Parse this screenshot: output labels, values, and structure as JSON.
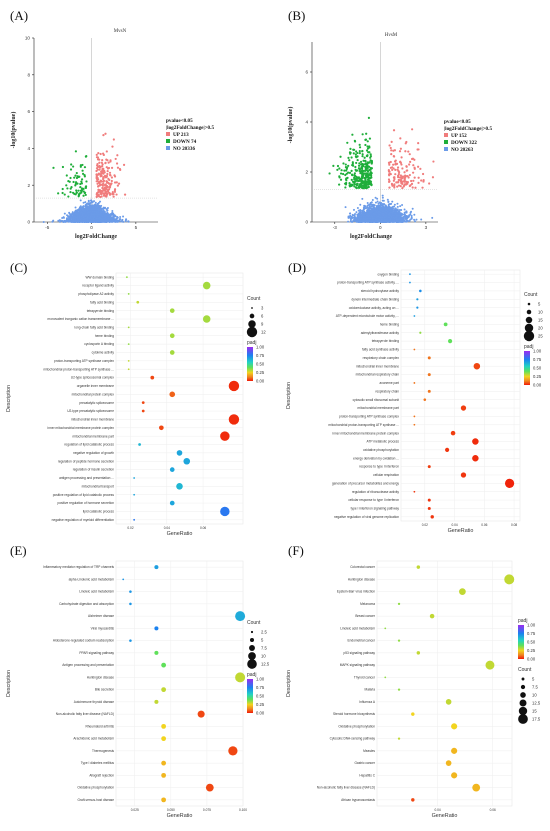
{
  "panels": {
    "A": "(A)",
    "B": "(B)",
    "C": "(C)",
    "D": "(D)",
    "E": "(E)",
    "F": "(F)"
  },
  "chart_data": [
    {
      "id": "A",
      "type": "scatter",
      "title": "MvsN",
      "xlabel": "log2FoldChange",
      "ylabel": "-log10(pvalue)",
      "xlim": [
        -6.5,
        7.5
      ],
      "ylim": [
        0,
        10
      ],
      "xticks": [
        -5,
        0,
        5
      ],
      "yticks": [
        0,
        2,
        4,
        6,
        8,
        10
      ],
      "legend_header": [
        "pvalue<0.05",
        "|log2FoldChange|>0.5"
      ],
      "legend": [
        {
          "label": "UP 213",
          "color": "#f07c7c"
        },
        {
          "label": "DOWN 74",
          "color": "#1fae3a"
        },
        {
          "label": "NO 20336",
          "color": "#6b9be8"
        }
      ],
      "up_count": 213,
      "down_count": 74,
      "no_count": 20336
    },
    {
      "id": "B",
      "type": "scatter",
      "title": "HvsM",
      "xlabel": "log2FoldChange",
      "ylabel": "-log10(pvalue)",
      "xlim": [
        -4.5,
        3.8
      ],
      "ylim": [
        0,
        7.2
      ],
      "xticks": [
        -3,
        0,
        3
      ],
      "yticks": [
        0,
        2,
        4,
        6
      ],
      "legend_header": [
        "pvalue<0.05",
        "|log2FoldChange|>0.5"
      ],
      "legend": [
        {
          "label": "UP 152",
          "color": "#f07c7c"
        },
        {
          "label": "DOWN 322",
          "color": "#1fae3a"
        },
        {
          "label": "NO 20263",
          "color": "#6b9be8"
        }
      ],
      "up_count": 152,
      "down_count": 322,
      "no_count": 20263
    },
    {
      "id": "C",
      "type": "scatter",
      "xlabel": "GeneRatio",
      "ylabel": "Description",
      "xlim": [
        0.012,
        0.082
      ],
      "xticks": [
        0.02,
        0.04,
        0.06
      ],
      "legend_size_title": "Count",
      "size_legend": [
        3,
        6,
        9,
        12
      ],
      "size_range": [
        3,
        12
      ],
      "legend_color_title": "padj",
      "color_ticks": [
        "1.00",
        "0.75",
        "0.50",
        "0.25",
        "0.00"
      ],
      "terms": [
        {
          "label": "WW domain binding",
          "x": 0.018,
          "count": 3,
          "padj": 0.35
        },
        {
          "label": "receptor ligand activity",
          "x": 0.062,
          "count": 9,
          "padj": 0.33
        },
        {
          "label": "phospholipase A2 activity",
          "x": 0.019,
          "count": 3,
          "padj": 0.35
        },
        {
          "label": "fatty acid binding",
          "x": 0.024,
          "count": 4,
          "padj": 0.3
        },
        {
          "label": "tetrapyrrole binding",
          "x": 0.043,
          "count": 6,
          "padj": 0.33
        },
        {
          "label": "monovalent inorganic cation transmembrane ...",
          "x": 0.062,
          "count": 9,
          "padj": 0.33
        },
        {
          "label": "long-chain fatty acid binding",
          "x": 0.019,
          "count": 3,
          "padj": 0.33
        },
        {
          "label": "heme binding",
          "x": 0.043,
          "count": 6,
          "padj": 0.33
        },
        {
          "label": "cyclosporin A binding",
          "x": 0.019,
          "count": 3,
          "padj": 0.35
        },
        {
          "label": "cytokine activity",
          "x": 0.043,
          "count": 6,
          "padj": 0.33
        },
        {
          "label": "proton-transporting ATP synthase complex",
          "x": 0.019,
          "count": 3,
          "padj": 0.3
        },
        {
          "label": "mitochondrial proton-transporting ATP synthase ...",
          "x": 0.019,
          "count": 3,
          "padj": 0.3
        },
        {
          "label": "U2-type spliceosomal complex",
          "x": 0.032,
          "count": 5,
          "padj": 0.05
        },
        {
          "label": "organelle inner membrane",
          "x": 0.077,
          "count": 12,
          "padj": 0.02
        },
        {
          "label": "mitochondrial protein complex",
          "x": 0.043,
          "count": 7,
          "padj": 0.08
        },
        {
          "label": "precatalytic spliceosome",
          "x": 0.027,
          "count": 4,
          "padj": 0.05
        },
        {
          "label": "U2-type precatalytic spliceosome",
          "x": 0.027,
          "count": 4,
          "padj": 0.05
        },
        {
          "label": "mitochondrial inner membrane",
          "x": 0.077,
          "count": 12,
          "padj": 0.02
        },
        {
          "label": "inner mitochondrial membrane protein complex",
          "x": 0.037,
          "count": 6,
          "padj": 0.05
        },
        {
          "label": "mitochondrial membrane part",
          "x": 0.072,
          "count": 11,
          "padj": 0.02
        },
        {
          "label": "regulation of lipid catabolic process",
          "x": 0.025,
          "count": 4,
          "padj": 0.62
        },
        {
          "label": "negative regulation of growth",
          "x": 0.047,
          "count": 7,
          "padj": 0.66
        },
        {
          "label": "regulation of peptide hormone secretion",
          "x": 0.051,
          "count": 8,
          "padj": 0.66
        },
        {
          "label": "regulation of insulin secretion",
          "x": 0.043,
          "count": 6,
          "padj": 0.66
        },
        {
          "label": "antigen processing and presentation ...",
          "x": 0.022,
          "count": 3,
          "padj": 0.66
        },
        {
          "label": "mitochondrial transport",
          "x": 0.047,
          "count": 8,
          "padj": 0.62
        },
        {
          "label": "positive regulation of lipid catabolic process",
          "x": 0.022,
          "count": 3,
          "padj": 0.66
        },
        {
          "label": "positive regulation of hormone secretion",
          "x": 0.043,
          "count": 6,
          "padj": 0.66
        },
        {
          "label": "lipid catabolic process",
          "x": 0.072,
          "count": 11,
          "padj": 0.78
        },
        {
          "label": "negative regulation of myeloid differentiation",
          "x": 0.022,
          "count": 3,
          "padj": 0.78
        }
      ]
    },
    {
      "id": "D",
      "type": "scatter",
      "xlabel": "GeneRatio",
      "ylabel": "Description",
      "xlim": [
        0.004,
        0.084
      ],
      "xticks": [
        0.02,
        0.04,
        0.06,
        0.08
      ],
      "legend_size_title": "Count",
      "size_legend": [
        5,
        10,
        15,
        20,
        25
      ],
      "size_range": [
        3,
        25
      ],
      "legend_color_title": "padj",
      "color_ticks": [
        "1.00",
        "0.75",
        "0.50",
        "0.25",
        "0.00"
      ],
      "terms": [
        {
          "label": "oxygen binding",
          "x": 0.01,
          "count": 3,
          "padj": 0.7
        },
        {
          "label": "proton-transporting ATP synthase activity, ...",
          "x": 0.01,
          "count": 3,
          "padj": 0.7
        },
        {
          "label": "steroid hydroxylase activity",
          "x": 0.017,
          "count": 5,
          "padj": 0.72
        },
        {
          "label": "dynein intermediate chain binding",
          "x": 0.015,
          "count": 4,
          "padj": 0.68
        },
        {
          "label": "oxidoreductase activity, acting on ...",
          "x": 0.015,
          "count": 4,
          "padj": 0.7
        },
        {
          "label": "ATP-dependent microtubule motor activity, ...",
          "x": 0.013,
          "count": 3,
          "padj": 0.68
        },
        {
          "label": "heme binding",
          "x": 0.034,
          "count": 8,
          "padj": 0.4
        },
        {
          "label": "adenylyltransferase activity",
          "x": 0.017,
          "count": 4,
          "padj": 0.35
        },
        {
          "label": "tetrapyrrole binding",
          "x": 0.037,
          "count": 9,
          "padj": 0.4
        },
        {
          "label": "fatty acid synthase activity",
          "x": 0.013,
          "count": 3,
          "padj": 0.1
        },
        {
          "label": "respiratory chain complex",
          "x": 0.023,
          "count": 6,
          "padj": 0.1
        },
        {
          "label": "mitochondrial inner membrane",
          "x": 0.055,
          "count": 15,
          "padj": 0.05
        },
        {
          "label": "mitochondrial respiratory chain",
          "x": 0.023,
          "count": 6,
          "padj": 0.1
        },
        {
          "label": "axoneme part",
          "x": 0.013,
          "count": 3,
          "padj": 0.1
        },
        {
          "label": "respiratory chain",
          "x": 0.023,
          "count": 6,
          "padj": 0.1
        },
        {
          "label": "cytosolic small ribosomal subunit",
          "x": 0.02,
          "count": 5,
          "padj": 0.1
        },
        {
          "label": "mitochondrial membrane part",
          "x": 0.046,
          "count": 12,
          "padj": 0.04
        },
        {
          "label": "proton-transporting ATP synthase complex",
          "x": 0.013,
          "count": 3,
          "padj": 0.1
        },
        {
          "label": "mitochondrial proton-transporting ATP synthase ...",
          "x": 0.013,
          "count": 3,
          "padj": 0.1
        },
        {
          "label": "inner mitochondrial membrane protein complex",
          "x": 0.039,
          "count": 10,
          "padj": 0.04
        },
        {
          "label": "ATP metabolic process",
          "x": 0.054,
          "count": 15,
          "padj": 0.02
        },
        {
          "label": "oxidative phosphorylation",
          "x": 0.035,
          "count": 9,
          "padj": 0.03
        },
        {
          "label": "energy derivation by oxidation ...",
          "x": 0.054,
          "count": 15,
          "padj": 0.02
        },
        {
          "label": "response to type I interferon",
          "x": 0.023,
          "count": 6,
          "padj": 0.04
        },
        {
          "label": "cellular respiration",
          "x": 0.046,
          "count": 12,
          "padj": 0.03
        },
        {
          "label": "generation of precursor metabolites and energy",
          "x": 0.077,
          "count": 22,
          "padj": 0.01
        },
        {
          "label": "regulation of ribonuclease activity",
          "x": 0.013,
          "count": 3,
          "padj": 0.03
        },
        {
          "label": "cellular response to type I interferon",
          "x": 0.023,
          "count": 6,
          "padj": 0.03
        },
        {
          "label": "type I interferon signaling pathway",
          "x": 0.023,
          "count": 6,
          "padj": 0.03
        },
        {
          "label": "negative regulation of viral genome replication",
          "x": 0.025,
          "count": 7,
          "padj": 0.03
        }
      ]
    },
    {
      "id": "E",
      "type": "scatter",
      "xlabel": "GeneRatio",
      "ylabel": "Description",
      "xlim": [
        0.012,
        0.1
      ],
      "xticks": [
        0.025,
        0.05,
        0.075,
        0.1
      ],
      "xtick_labels": [
        "0.025",
        "0.050",
        "0.075",
        "0.100"
      ],
      "legend_size_title": "Count",
      "size_legend": [
        2.5,
        5.0,
        7.5,
        10.0,
        12.5
      ],
      "size_range": [
        2,
        13
      ],
      "legend_color_title": "padj",
      "color_ticks": [
        "1.00",
        "0.75",
        "0.50",
        "0.25",
        "0.00"
      ],
      "terms": [
        {
          "label": "Inflammatory mediator regulation of TRP channels",
          "x": 0.04,
          "count": 5,
          "padj": 0.68
        },
        {
          "label": "alpha-Linolenic acid metabolism",
          "x": 0.017,
          "count": 2,
          "padj": 0.7
        },
        {
          "label": "Linoleic acid metabolism",
          "x": 0.022,
          "count": 3,
          "padj": 0.7
        },
        {
          "label": "Carbohydrate digestion and absorption",
          "x": 0.022,
          "count": 3,
          "padj": 0.7
        },
        {
          "label": "Alzheimer disease",
          "x": 0.098,
          "count": 13,
          "padj": 0.65
        },
        {
          "label": "Viral myocarditis",
          "x": 0.04,
          "count": 5,
          "padj": 0.75
        },
        {
          "label": "Aldosterone-regulated sodium reabsorption",
          "x": 0.022,
          "count": 3,
          "padj": 0.7
        },
        {
          "label": "PPAR signaling pathway",
          "x": 0.04,
          "count": 5,
          "padj": 0.4
        },
        {
          "label": "Antigen processing and presentation",
          "x": 0.045,
          "count": 6,
          "padj": 0.4
        },
        {
          "label": "Huntington disease",
          "x": 0.098,
          "count": 13,
          "padj": 0.3
        },
        {
          "label": "Bile secretion",
          "x": 0.045,
          "count": 6,
          "padj": 0.3
        },
        {
          "label": "Autoimmune thyroid disease",
          "x": 0.04,
          "count": 5,
          "padj": 0.3
        },
        {
          "label": "Non-alcoholic fatty liver disease (NAFLD)",
          "x": 0.071,
          "count": 9,
          "padj": 0.05
        },
        {
          "label": "Rheumatoid arthritis",
          "x": 0.045,
          "count": 6,
          "padj": 0.25
        },
        {
          "label": "Arachidonic acid metabolism",
          "x": 0.045,
          "count": 6,
          "padj": 0.25
        },
        {
          "label": "Thermogenesis",
          "x": 0.093,
          "count": 12,
          "padj": 0.05
        },
        {
          "label": "Type I diabetes mellitus",
          "x": 0.045,
          "count": 6,
          "padj": 0.2
        },
        {
          "label": "Allograft rejection",
          "x": 0.045,
          "count": 6,
          "padj": 0.2
        },
        {
          "label": "Oxidative phosphorylation",
          "x": 0.077,
          "count": 10,
          "padj": 0.05
        },
        {
          "label": "Graft-versus-host disease",
          "x": 0.045,
          "count": 6,
          "padj": 0.2
        }
      ]
    },
    {
      "id": "F",
      "type": "scatter",
      "xlabel": "GeneRatio",
      "ylabel": "Description",
      "xlim": [
        0.018,
        0.067
      ],
      "xticks": [
        0.04,
        0.06
      ],
      "legend_color_title": "padj",
      "color_ticks": [
        "1.00",
        "0.75",
        "0.50",
        "0.25",
        "0.00"
      ],
      "legend_size_title": "Count",
      "size_legend": [
        5.0,
        7.5,
        10.0,
        12.5,
        15.0,
        17.5
      ],
      "size_range": [
        3,
        18
      ],
      "terms": [
        {
          "label": "Colorectal cancer",
          "x": 0.033,
          "count": 6,
          "padj": 0.3
        },
        {
          "label": "Huntington disease",
          "x": 0.066,
          "count": 18,
          "padj": 0.3
        },
        {
          "label": "Epstein-Barr virus infection",
          "x": 0.049,
          "count": 12,
          "padj": 0.3
        },
        {
          "label": "Melanoma",
          "x": 0.026,
          "count": 4,
          "padj": 0.35
        },
        {
          "label": "Breast cancer",
          "x": 0.038,
          "count": 8,
          "padj": 0.3
        },
        {
          "label": "Linoleic acid metabolism",
          "x": 0.021,
          "count": 3,
          "padj": 0.35
        },
        {
          "label": "Endometrial cancer",
          "x": 0.026,
          "count": 4,
          "padj": 0.35
        },
        {
          "label": "p53 signaling pathway",
          "x": 0.033,
          "count": 6,
          "padj": 0.3
        },
        {
          "label": "MAPK signaling pathway",
          "x": 0.059,
          "count": 16,
          "padj": 0.3
        },
        {
          "label": "Thyroid cancer",
          "x": 0.021,
          "count": 3,
          "padj": 0.35
        },
        {
          "label": "Malaria",
          "x": 0.026,
          "count": 4,
          "padj": 0.35
        },
        {
          "label": "Influenza A",
          "x": 0.044,
          "count": 10,
          "padj": 0.3
        },
        {
          "label": "Steroid hormone biosynthesis",
          "x": 0.031,
          "count": 6,
          "padj": 0.25
        },
        {
          "label": "Oxidative phosphorylation",
          "x": 0.046,
          "count": 11,
          "padj": 0.25
        },
        {
          "label": "Cytosolic DNA-sensing pathway",
          "x": 0.026,
          "count": 4,
          "padj": 0.3
        },
        {
          "label": "Measles",
          "x": 0.046,
          "count": 11,
          "padj": 0.2
        },
        {
          "label": "Gastric cancer",
          "x": 0.044,
          "count": 10,
          "padj": 0.2
        },
        {
          "label": "Hepatitis C",
          "x": 0.046,
          "count": 11,
          "padj": 0.2
        },
        {
          "label": "Non-alcoholic fatty liver disease (NAFLD)",
          "x": 0.054,
          "count": 14,
          "padj": 0.2
        },
        {
          "label": "African trypanosomiasis",
          "x": 0.031,
          "count": 6,
          "padj": 0.05
        }
      ]
    }
  ]
}
